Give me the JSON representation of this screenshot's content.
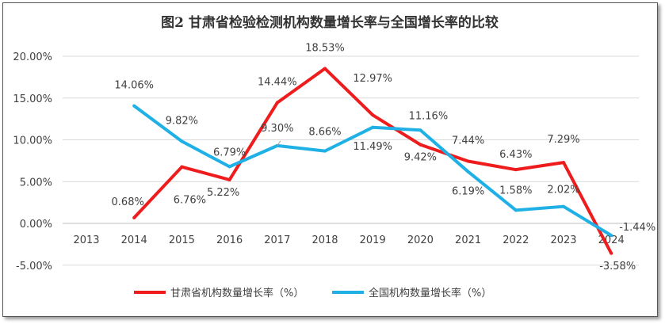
{
  "chart_data": {
    "type": "line",
    "title": "图2 甘肃省检验检测机构数量增长率与全国增长率的比较",
    "categories": [
      "2013",
      "2014",
      "2015",
      "2016",
      "2017",
      "2018",
      "2019",
      "2020",
      "2021",
      "2022",
      "2023",
      "2024"
    ],
    "ylim": [
      -5,
      20
    ],
    "yticks": [
      "-5.00%",
      "0.00%",
      "5.00%",
      "10.00%",
      "15.00%",
      "20.00%"
    ],
    "ytick_values": [
      -5,
      0,
      5,
      10,
      15,
      20
    ],
    "grid": true,
    "legend_position": "bottom",
    "series": [
      {
        "name": "甘肃省机构数量增长率（%）",
        "color": "#ee1c1c",
        "x": [
          "2014",
          "2015",
          "2016",
          "2017",
          "2018",
          "2019",
          "2020",
          "2021",
          "2022",
          "2023",
          "2024"
        ],
        "values": [
          0.68,
          6.76,
          5.22,
          14.44,
          18.53,
          12.97,
          9.42,
          7.44,
          6.43,
          7.29,
          -3.58
        ],
        "labels": [
          "0.68%",
          "6.76%",
          "5.22%",
          "14.44%",
          "18.53%",
          "12.97%",
          "9.42%",
          "7.44%",
          "6.43%",
          "7.29%",
          "-3.58%"
        ]
      },
      {
        "name": "全国机构数量增长率（%）",
        "color": "#1fb0e6",
        "x": [
          "2014",
          "2015",
          "2016",
          "2017",
          "2018",
          "2019",
          "2020",
          "2021",
          "2022",
          "2023",
          "2024"
        ],
        "values": [
          14.06,
          9.82,
          6.79,
          9.3,
          8.66,
          11.49,
          11.16,
          6.19,
          1.58,
          2.02,
          -1.44
        ],
        "labels": [
          "14.06%",
          "9.82%",
          "6.79%",
          "9.30%",
          "8.66%",
          "11.49%",
          "11.16%",
          "6.19%",
          "1.58%",
          "2.02%",
          "-1.44%"
        ]
      }
    ]
  }
}
